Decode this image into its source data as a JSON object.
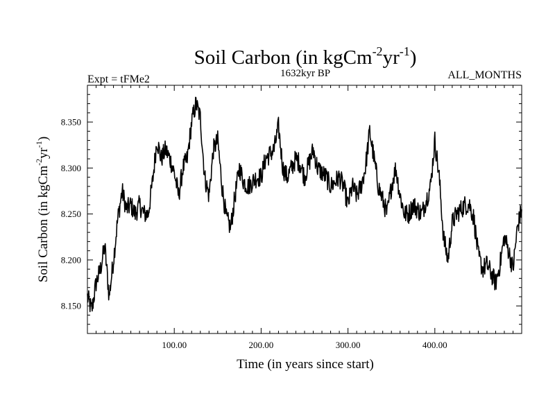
{
  "chart_data": {
    "type": "line",
    "title_main": "Soil Carbon (in kgCm",
    "title_sup1": "-2",
    "title_mid": "yr",
    "title_sup2": "-1",
    "title_end": ")",
    "subtitle_left": "Expt = tFMe2",
    "subtitle_center": "1632kyr BP",
    "subtitle_right": "ALL_MONTHS",
    "xlabel": "Time (in years since start)",
    "ylabel_main": "Soil Carbon (in kgCm",
    "ylabel_sup1": "-2",
    "ylabel_mid": "yr",
    "ylabel_sup2": "-1",
    "ylabel_end": ")",
    "xlim": [
      0,
      500
    ],
    "ylim": [
      8.12,
      8.39
    ],
    "x_ticks": [
      100,
      200,
      300,
      400
    ],
    "x_tick_labels": [
      "100.00",
      "200.00",
      "300.00",
      "400.00"
    ],
    "y_ticks": [
      8.15,
      8.2,
      8.25,
      8.3,
      8.35
    ],
    "y_tick_labels": [
      "8.150",
      "8.200",
      "8.250",
      "8.300",
      "8.350"
    ],
    "grid": false,
    "series": [
      {
        "name": "Soil Carbon",
        "color": "#000000",
        "x": [
          0,
          5,
          10,
          15,
          20,
          25,
          30,
          35,
          40,
          45,
          50,
          55,
          60,
          65,
          70,
          75,
          80,
          85,
          90,
          95,
          100,
          105,
          110,
          115,
          120,
          125,
          130,
          135,
          140,
          145,
          150,
          155,
          160,
          165,
          170,
          175,
          180,
          185,
          190,
          195,
          200,
          205,
          210,
          215,
          220,
          225,
          230,
          235,
          240,
          245,
          250,
          255,
          260,
          265,
          270,
          275,
          280,
          285,
          290,
          295,
          300,
          305,
          310,
          315,
          320,
          325,
          330,
          335,
          340,
          345,
          350,
          355,
          360,
          365,
          370,
          375,
          380,
          385,
          390,
          395,
          400,
          405,
          410,
          415,
          420,
          425,
          430,
          435,
          440,
          445,
          450,
          455,
          460,
          465,
          470,
          475,
          480,
          485,
          490,
          495,
          500
        ],
        "y": [
          8.16,
          8.145,
          8.175,
          8.19,
          8.215,
          8.16,
          8.2,
          8.245,
          8.275,
          8.255,
          8.26,
          8.25,
          8.26,
          8.25,
          8.25,
          8.285,
          8.33,
          8.31,
          8.32,
          8.31,
          8.295,
          8.27,
          8.3,
          8.31,
          8.35,
          8.37,
          8.355,
          8.29,
          8.27,
          8.32,
          8.33,
          8.28,
          8.245,
          8.235,
          8.27,
          8.3,
          8.285,
          8.28,
          8.285,
          8.29,
          8.29,
          8.31,
          8.315,
          8.32,
          8.345,
          8.3,
          8.29,
          8.3,
          8.31,
          8.305,
          8.29,
          8.305,
          8.32,
          8.3,
          8.295,
          8.29,
          8.28,
          8.285,
          8.29,
          8.28,
          8.26,
          8.28,
          8.27,
          8.28,
          8.3,
          8.34,
          8.31,
          8.28,
          8.265,
          8.25,
          8.28,
          8.3,
          8.27,
          8.25,
          8.25,
          8.26,
          8.255,
          8.25,
          8.265,
          8.28,
          8.33,
          8.29,
          8.225,
          8.2,
          8.24,
          8.25,
          8.255,
          8.26,
          8.26,
          8.245,
          8.205,
          8.19,
          8.195,
          8.185,
          8.175,
          8.195,
          8.225,
          8.21,
          8.19,
          8.235,
          8.255
        ]
      }
    ]
  }
}
